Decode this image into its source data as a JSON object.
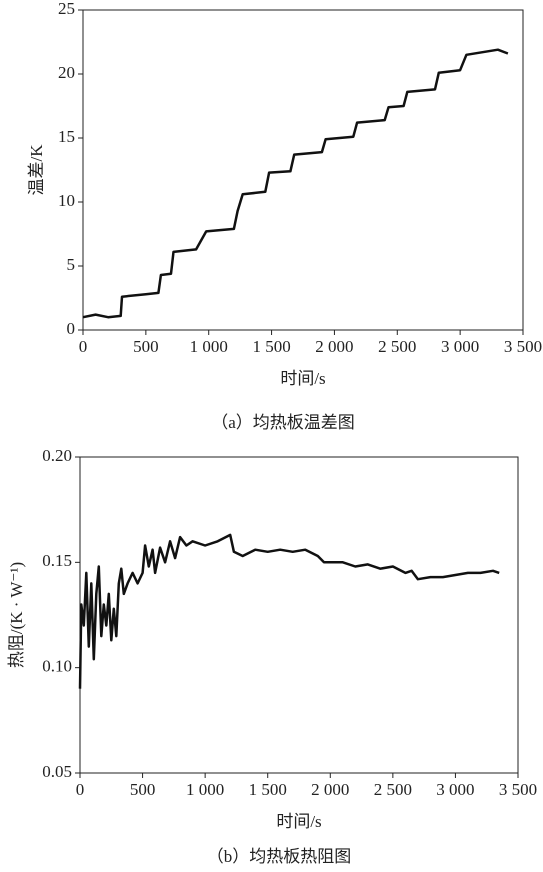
{
  "chart_data": [
    {
      "type": "line",
      "caption": "（a）均热板温差图",
      "xlabel": "时间/s",
      "ylabel": "温差/K",
      "xlim": [
        0,
        3500
      ],
      "ylim": [
        0,
        25
      ],
      "xticks": [
        0,
        500,
        {
          "value": 1000,
          "label": "1 000"
        },
        {
          "value": 1500,
          "label": "1 500"
        },
        {
          "value": 2000,
          "label": "2 000"
        },
        {
          "value": 2500,
          "label": "2 500"
        },
        {
          "value": 3000,
          "label": "3 000"
        },
        {
          "value": 3500,
          "label": "3 500"
        }
      ],
      "yticks": [
        0,
        5,
        10,
        15,
        20,
        25
      ],
      "series": [
        {
          "color": "#111111",
          "x": [
            0,
            100,
            200,
            300,
            310,
            500,
            600,
            620,
            700,
            720,
            900,
            980,
            1200,
            1230,
            1270,
            1450,
            1480,
            1650,
            1680,
            1900,
            1930,
            2150,
            2180,
            2400,
            2430,
            2550,
            2580,
            2800,
            2830,
            3000,
            3050,
            3300,
            3380
          ],
          "values": [
            1.0,
            1.2,
            1.0,
            1.1,
            2.6,
            2.8,
            2.9,
            4.3,
            4.4,
            6.1,
            6.3,
            7.7,
            7.9,
            9.3,
            10.6,
            10.8,
            12.3,
            12.4,
            13.7,
            13.9,
            14.9,
            15.1,
            16.2,
            16.4,
            17.4,
            17.5,
            18.6,
            18.8,
            20.1,
            20.3,
            21.5,
            21.9,
            21.6
          ]
        }
      ]
    },
    {
      "type": "line",
      "caption": "（b）均热板热阻图",
      "xlabel": "时间/s",
      "ylabel": "热阻/(K · W⁻¹)",
      "xlim": [
        0,
        3500
      ],
      "ylim": [
        0.05,
        0.2
      ],
      "xticks": [
        0,
        500,
        {
          "value": 1000,
          "label": "1 000"
        },
        {
          "value": 1500,
          "label": "1 500"
        },
        {
          "value": 2000,
          "label": "2 000"
        },
        {
          "value": 2500,
          "label": "2 500"
        },
        {
          "value": 3000,
          "label": "3 000"
        },
        {
          "value": 3500,
          "label": "3 500"
        }
      ],
      "yticks": [
        0.05,
        {
          "value": 0.1,
          "label": "0.10"
        },
        0.15,
        {
          "value": 0.2,
          "label": "0.20"
        }
      ],
      "series": [
        {
          "color": "#111111",
          "x": [
            0,
            10,
            30,
            50,
            70,
            90,
            110,
            130,
            150,
            170,
            190,
            210,
            230,
            250,
            270,
            290,
            310,
            330,
            350,
            380,
            420,
            460,
            500,
            520,
            550,
            580,
            600,
            640,
            680,
            720,
            760,
            800,
            850,
            900,
            1000,
            1100,
            1200,
            1230,
            1300,
            1400,
            1500,
            1600,
            1700,
            1800,
            1900,
            1950,
            2100,
            2200,
            2300,
            2400,
            2500,
            2600,
            2650,
            2700,
            2800,
            2900,
            3000,
            3100,
            3200,
            3300,
            3350
          ],
          "values": [
            0.09,
            0.13,
            0.12,
            0.145,
            0.11,
            0.14,
            0.104,
            0.135,
            0.148,
            0.115,
            0.13,
            0.12,
            0.135,
            0.113,
            0.128,
            0.115,
            0.14,
            0.147,
            0.135,
            0.14,
            0.145,
            0.14,
            0.145,
            0.158,
            0.148,
            0.156,
            0.145,
            0.157,
            0.15,
            0.16,
            0.152,
            0.162,
            0.158,
            0.16,
            0.158,
            0.16,
            0.163,
            0.155,
            0.153,
            0.156,
            0.155,
            0.156,
            0.155,
            0.156,
            0.153,
            0.15,
            0.15,
            0.148,
            0.149,
            0.147,
            0.148,
            0.145,
            0.146,
            0.142,
            0.143,
            0.143,
            0.144,
            0.145,
            0.145,
            0.146,
            0.145
          ]
        }
      ]
    }
  ]
}
